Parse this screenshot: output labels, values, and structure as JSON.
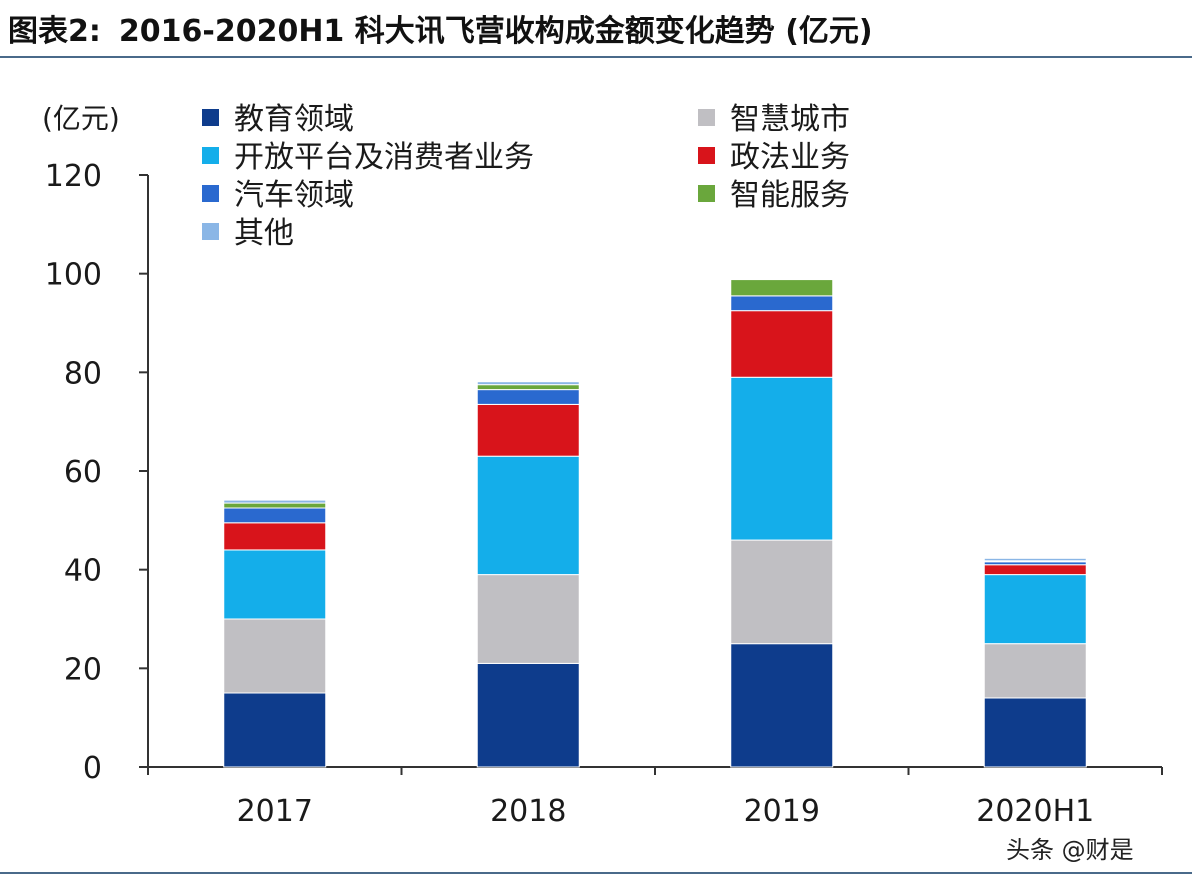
{
  "header": {
    "figure_label": "图表2:",
    "title": "2016-2020H1 科大讯飞营收构成金额变化趋势 (亿元)"
  },
  "watermark": "头条 @财是",
  "chart_data": {
    "type": "bar",
    "stacked": true,
    "ylabel": "(亿元)",
    "ylim": [
      0,
      120
    ],
    "yticks": [
      0,
      20,
      40,
      60,
      80,
      100,
      120
    ],
    "categories": [
      "2017",
      "2018",
      "2019",
      "2020H1"
    ],
    "legend_position": "top",
    "series": [
      {
        "name": "教育领域",
        "color": "#0e3c8c",
        "values": [
          15,
          21,
          25,
          14
        ]
      },
      {
        "name": "智慧城市",
        "color": "#c0bfc3",
        "values": [
          15,
          18,
          21,
          11
        ]
      },
      {
        "name": "开放平台及消费者业务",
        "color": "#14aeea",
        "values": [
          14,
          24,
          33,
          14
        ]
      },
      {
        "name": "政法业务",
        "color": "#d8141b",
        "values": [
          5.5,
          10.5,
          13.5,
          2
        ]
      },
      {
        "name": "汽车领域",
        "color": "#2a69cf",
        "values": [
          3,
          3,
          3,
          0.6
        ]
      },
      {
        "name": "智能服务",
        "color": "#6aa73c",
        "values": [
          1,
          1,
          3.3,
          0.2
        ]
      },
      {
        "name": "其他",
        "color": "#8ab6e6",
        "values": [
          0.6,
          0.6,
          0,
          0.5
        ]
      }
    ]
  }
}
